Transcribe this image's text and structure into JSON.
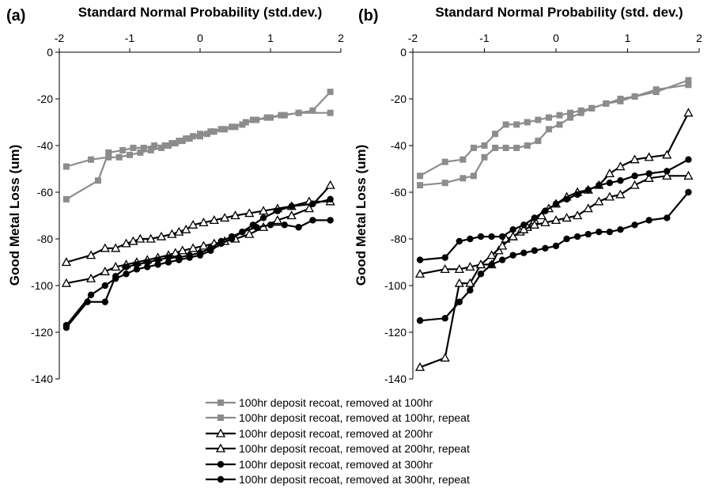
{
  "chart_data": [
    {
      "type": "line",
      "panel_label": "(a)",
      "xlabel": "Standard Normal Probability (std.dev.)",
      "ylabel": "Good Metal Loss (um)",
      "xlim": [
        -2,
        2
      ],
      "ylim": [
        -140,
        0
      ],
      "xticks": [
        -2,
        -1,
        0,
        1,
        2
      ],
      "yticks": [
        0,
        -20,
        -40,
        -60,
        -80,
        -100,
        -120,
        -140
      ],
      "x_axis_position": "top",
      "grid": false,
      "series": [
        {
          "name": "100hr deposit recoat, removed at 100hr",
          "color": "#8c8c8c",
          "marker": "square",
          "x": [
            -1.9,
            -1.55,
            -1.3,
            -1.15,
            -1.0,
            -0.85,
            -0.7,
            -0.55,
            -0.45,
            -0.35,
            -0.25,
            -0.15,
            0.0,
            0.1,
            0.2,
            0.35,
            0.5,
            0.65,
            0.8,
            1.0,
            1.2,
            1.4,
            1.6,
            1.85
          ],
          "y": [
            -49,
            -46,
            -45,
            -45,
            -44,
            -43,
            -42,
            -41,
            -40,
            -39,
            -38,
            -37,
            -36,
            -35,
            -34,
            -33,
            -32,
            -30,
            -29,
            -28,
            -27,
            -26,
            -25,
            -17
          ]
        },
        {
          "name": "100hr deposit recoat, removed at 100hr, repeat",
          "color": "#8c8c8c",
          "marker": "square",
          "x": [
            -1.9,
            -1.45,
            -1.3,
            -1.1,
            -0.95,
            -0.8,
            -0.65,
            -0.5,
            -0.4,
            -0.3,
            -0.2,
            -0.1,
            0.0,
            0.15,
            0.3,
            0.45,
            0.6,
            0.75,
            0.95,
            1.15,
            1.4,
            1.85
          ],
          "y": [
            -63,
            -55,
            -43,
            -42,
            -41,
            -41,
            -40,
            -40,
            -39,
            -38,
            -37,
            -36,
            -35,
            -34,
            -33,
            -32,
            -31,
            -29,
            -28,
            -27,
            -26,
            -26
          ]
        },
        {
          "name": "100hr deposit recoat, removed at 200hr",
          "color": "#000000",
          "marker": "triangle-open",
          "x": [
            -1.9,
            -1.55,
            -1.35,
            -1.2,
            -1.05,
            -0.95,
            -0.85,
            -0.7,
            -0.55,
            -0.4,
            -0.3,
            -0.2,
            -0.1,
            0.05,
            0.2,
            0.35,
            0.5,
            0.7,
            0.9,
            1.1,
            1.3,
            1.55,
            1.85
          ],
          "y": [
            -90,
            -87,
            -84,
            -84,
            -82,
            -81,
            -80,
            -80,
            -79,
            -78,
            -77,
            -76,
            -74,
            -73,
            -72,
            -71,
            -70,
            -69,
            -68,
            -67,
            -66,
            -64,
            -64
          ]
        },
        {
          "name": "100hr deposit recoat, removed at 200hr, repeat",
          "color": "#000000",
          "marker": "triangle-open",
          "x": [
            -1.9,
            -1.55,
            -1.35,
            -1.2,
            -1.05,
            -0.9,
            -0.75,
            -0.6,
            -0.45,
            -0.35,
            -0.25,
            -0.1,
            0.05,
            0.2,
            0.35,
            0.5,
            0.7,
            0.9,
            1.1,
            1.3,
            1.55,
            1.85
          ],
          "y": [
            -99,
            -97,
            -94,
            -92,
            -91,
            -90,
            -89,
            -88,
            -87,
            -86,
            -85,
            -84,
            -83,
            -82,
            -81,
            -80,
            -78,
            -75,
            -72,
            -70,
            -67,
            -57
          ]
        },
        {
          "name": "100hr deposit recoat, removed at 300hr",
          "color": "#000000",
          "marker": "circle",
          "x": [
            -1.9,
            -1.55,
            -1.35,
            -1.2,
            -1.05,
            -0.9,
            -0.75,
            -0.6,
            -0.45,
            -0.3,
            -0.15,
            0.0,
            0.15,
            0.3,
            0.45,
            0.6,
            0.75,
            0.9,
            1.1,
            1.3,
            1.6,
            1.85
          ],
          "y": [
            -117,
            -104,
            -100,
            -97,
            -95,
            -93,
            -92,
            -91,
            -90,
            -89,
            -88,
            -87,
            -85,
            -82,
            -80,
            -77,
            -74,
            -71,
            -68,
            -66,
            -65,
            -63
          ]
        },
        {
          "name": "100hr deposit recoat, removed at 300hr, repeat",
          "color": "#000000",
          "marker": "circle",
          "x": [
            -1.9,
            -1.6,
            -1.35,
            -1.2,
            -1.05,
            -0.9,
            -0.75,
            -0.6,
            -0.45,
            -0.3,
            -0.15,
            0.0,
            0.15,
            0.3,
            0.45,
            0.6,
            0.8,
            1.0,
            1.2,
            1.4,
            1.6,
            1.85
          ],
          "y": [
            -118,
            -107,
            -107,
            -96,
            -92,
            -91,
            -90,
            -89,
            -88,
            -88,
            -87,
            -86,
            -84,
            -81,
            -79,
            -77,
            -75,
            -74,
            -74,
            -75,
            -72,
            -72
          ]
        }
      ]
    },
    {
      "type": "line",
      "panel_label": "(b)",
      "xlabel": "Standard Normal Probability (std. dev.)",
      "ylabel": "Good Metal Loss (um)",
      "xlim": [
        -2,
        2
      ],
      "ylim": [
        -140,
        0
      ],
      "xticks": [
        -2,
        -1,
        0,
        1,
        2
      ],
      "yticks": [
        0,
        -20,
        -40,
        -60,
        -80,
        -100,
        -120,
        -140
      ],
      "x_axis_position": "top",
      "grid": false,
      "series": [
        {
          "name": "100hr deposit recoat, removed at 100hr",
          "color": "#8c8c8c",
          "marker": "square",
          "x": [
            -1.9,
            -1.55,
            -1.3,
            -1.15,
            -1.0,
            -0.85,
            -0.7,
            -0.55,
            -0.4,
            -0.25,
            -0.1,
            0.05,
            0.2,
            0.35,
            0.5,
            0.7,
            0.9,
            1.1,
            1.4,
            1.85
          ],
          "y": [
            -53,
            -47,
            -46,
            -41,
            -40,
            -35,
            -31,
            -31,
            -30,
            -29,
            -28,
            -27,
            -26,
            -25,
            -24,
            -22,
            -20,
            -19,
            -17,
            -12
          ]
        },
        {
          "name": "100hr deposit recoat, removed at 100hr, repeat",
          "color": "#8c8c8c",
          "marker": "square",
          "x": [
            -1.9,
            -1.55,
            -1.3,
            -1.15,
            -1.0,
            -0.85,
            -0.7,
            -0.55,
            -0.4,
            -0.25,
            -0.1,
            0.05,
            0.2,
            0.35,
            0.5,
            0.7,
            0.9,
            1.1,
            1.4,
            1.85
          ],
          "y": [
            -57,
            -56,
            -54,
            -53,
            -45,
            -41,
            -41,
            -41,
            -40,
            -38,
            -33,
            -31,
            -28,
            -26,
            -24,
            -22,
            -21,
            -19,
            -16,
            -14
          ]
        },
        {
          "name": "100hr deposit recoat, removed at 200hr",
          "color": "#000000",
          "marker": "triangle-open",
          "x": [
            -1.9,
            -1.55,
            -1.35,
            -1.2,
            -1.05,
            -0.9,
            -0.8,
            -0.7,
            -0.6,
            -0.5,
            -0.4,
            -0.3,
            -0.2,
            -0.1,
            0.0,
            0.15,
            0.3,
            0.45,
            0.6,
            0.75,
            0.9,
            1.1,
            1.3,
            1.55,
            1.85
          ],
          "y": [
            -95,
            -93,
            -93,
            -92,
            -91,
            -91,
            -85,
            -80,
            -79,
            -77,
            -75,
            -72,
            -70,
            -67,
            -65,
            -62,
            -60,
            -59,
            -57,
            -52,
            -49,
            -46,
            -45,
            -44,
            -26
          ]
        },
        {
          "name": "100hr deposit recoat, removed at 200hr, repeat",
          "color": "#000000",
          "marker": "triangle-open",
          "x": [
            -1.9,
            -1.55,
            -1.35,
            -1.2,
            -1.05,
            -0.9,
            -0.75,
            -0.6,
            -0.45,
            -0.3,
            -0.15,
            0.0,
            0.15,
            0.3,
            0.45,
            0.6,
            0.75,
            0.9,
            1.1,
            1.3,
            1.55,
            1.85
          ],
          "y": [
            -135,
            -131,
            -99,
            -99,
            -91,
            -87,
            -83,
            -79,
            -76,
            -74,
            -73,
            -72,
            -71,
            -70,
            -67,
            -64,
            -62,
            -61,
            -57,
            -54,
            -53,
            -53
          ]
        },
        {
          "name": "100hr deposit recoat, removed at 300hr",
          "color": "#000000",
          "marker": "circle",
          "x": [
            -1.9,
            -1.55,
            -1.35,
            -1.2,
            -1.05,
            -0.9,
            -0.75,
            -0.6,
            -0.45,
            -0.3,
            -0.15,
            0.0,
            0.15,
            0.3,
            0.45,
            0.6,
            0.75,
            0.9,
            1.1,
            1.3,
            1.55,
            1.85
          ],
          "y": [
            -89,
            -88,
            -81,
            -80,
            -79,
            -79,
            -79,
            -76,
            -74,
            -71,
            -68,
            -65,
            -63,
            -61,
            -59,
            -57,
            -56,
            -55,
            -53,
            -52,
            -51,
            -46
          ]
        },
        {
          "name": "100hr deposit recoat, removed at 300hr, repeat",
          "color": "#000000",
          "marker": "circle",
          "x": [
            -1.9,
            -1.55,
            -1.35,
            -1.2,
            -1.05,
            -0.9,
            -0.75,
            -0.6,
            -0.45,
            -0.3,
            -0.15,
            0.0,
            0.15,
            0.3,
            0.45,
            0.6,
            0.75,
            0.9,
            1.1,
            1.3,
            1.55,
            1.85
          ],
          "y": [
            -115,
            -114,
            -107,
            -102,
            -95,
            -91,
            -89,
            -87,
            -86,
            -85,
            -84,
            -83,
            -80,
            -79,
            -78,
            -77,
            -77,
            -76,
            -74,
            -72,
            -71,
            -60
          ]
        }
      ]
    }
  ],
  "legend": {
    "entries": [
      {
        "label": "100hr deposit recoat, removed at 100hr",
        "color": "#8c8c8c",
        "marker": "square"
      },
      {
        "label": "100hr deposit recoat, removed at 100hr, repeat",
        "color": "#8c8c8c",
        "marker": "square"
      },
      {
        "label": "100hr deposit recoat, removed at 200hr",
        "color": "#000000",
        "marker": "triangle-open"
      },
      {
        "label": "100hr deposit recoat, removed at 200hr, repeat",
        "color": "#000000",
        "marker": "triangle-open"
      },
      {
        "label": "100hr deposit recoat, removed at 300hr",
        "color": "#000000",
        "marker": "circle"
      },
      {
        "label": "100hr deposit recoat, removed at 300hr, repeat",
        "color": "#000000",
        "marker": "circle"
      }
    ]
  }
}
